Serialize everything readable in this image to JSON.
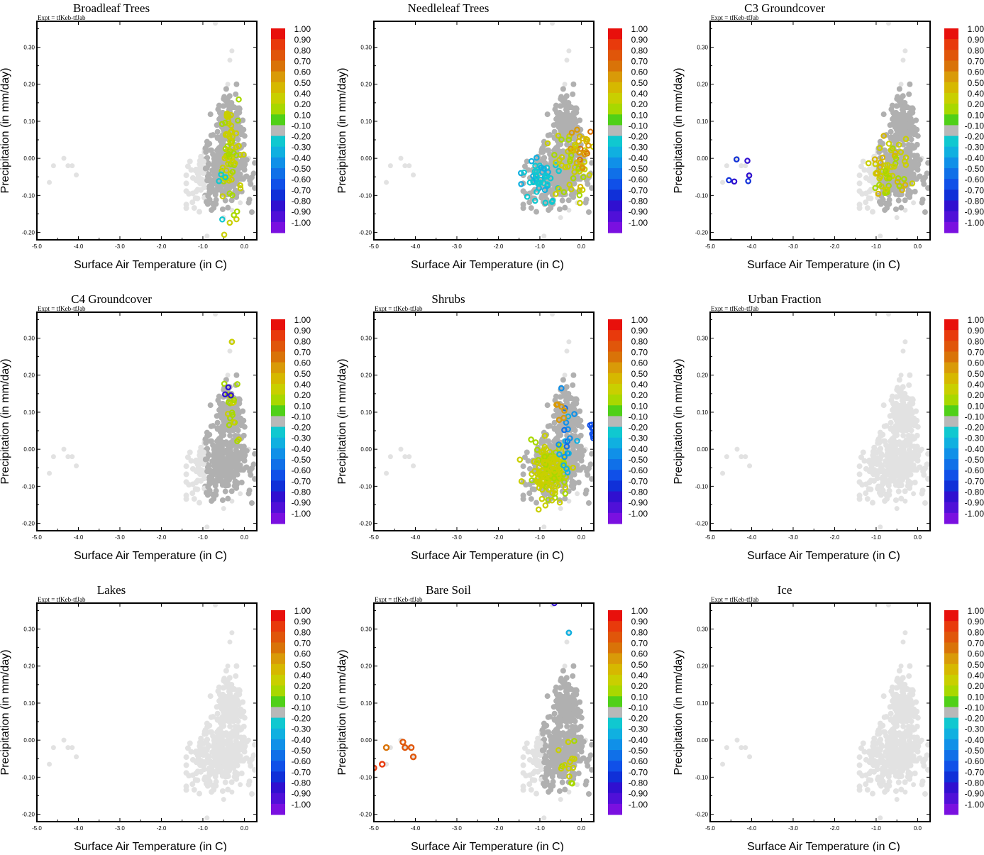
{
  "figure": {
    "panels": [
      {
        "title": "Broadleaf Trees",
        "expt": "Expt = tfKeb-tfJab",
        "xlabel": "Surface Air Temperature (in C)",
        "ylabel": "Precipitation (in mm/day)",
        "mode": "broadleaf"
      },
      {
        "title": "Needleleaf Trees",
        "expt": "",
        "xlabel": "Surface Air Temperature (in C)",
        "ylabel": "Precipitation (in mm/day)",
        "mode": "needleleaf"
      },
      {
        "title": "C3 Groundcover",
        "expt": "Expt = tfKeb-tfJab",
        "xlabel": "Surface Air Temperature (in C)",
        "ylabel": "Precipitation (in mm/day)",
        "mode": "c3"
      },
      {
        "title": "C4 Groundcover",
        "expt": "Expt = tfKeb-tfJab",
        "xlabel": "Surface Air Temperature (in C)",
        "ylabel": "Precipitation (in mm/day)",
        "mode": "c4"
      },
      {
        "title": "Shrubs",
        "expt": "Expt = tfKeb-tfJab",
        "xlabel": "Surface Air Temperature (in C)",
        "ylabel": "Precipitation (in mm/day)",
        "mode": "shrubs"
      },
      {
        "title": "Urban Fraction",
        "expt": "Expt = tfKeb-tfJab",
        "xlabel": "Surface Air Temperature (in C)",
        "ylabel": "Precipitation (in mm/day)",
        "mode": "none"
      },
      {
        "title": "Lakes",
        "expt": "Expt = tfKeb-tfJab",
        "xlabel": "Surface Air Temperature (in C)",
        "ylabel": "Precipitation (in mm/day)",
        "mode": "none"
      },
      {
        "title": "Bare Soil",
        "expt": "Expt = tfKeb-tfJab",
        "xlabel": "Surface Air Temperature (in C)",
        "ylabel": "Precipitation (in mm/day)",
        "mode": "bare"
      },
      {
        "title": "Ice",
        "expt": "Expt = tfKeb-tfJab",
        "xlabel": "Surface Air Temperature (in C)",
        "ylabel": "Precipitation (in mm/day)",
        "mode": "none"
      }
    ],
    "colorbar": {
      "labels": [
        "1.00",
        "0.90",
        "0.80",
        "0.70",
        "0.60",
        "0.50",
        "0.40",
        "0.20",
        "0.10",
        "-0.10",
        "-0.20",
        "-0.30",
        "-0.40",
        "-0.50",
        "-0.60",
        "-0.70",
        "-0.80",
        "-0.90",
        "-1.00"
      ],
      "colors": [
        "#e8100c",
        "#e83a0c",
        "#e0560a",
        "#d97308",
        "#d99a08",
        "#d6b800",
        "#c9cf00",
        "#a8d800",
        "#50d018",
        "#b8b8b8",
        "#10c8d0",
        "#10b0e0",
        "#1090e8",
        "#1070e8",
        "#1050e8",
        "#1030d8",
        "#3010d0",
        "#5010d8",
        "#7a10e0"
      ]
    },
    "palette": {
      "light_gray": "#e2e2e2",
      "dark_gray": "#b0b0b0"
    }
  },
  "chart_data": {
    "type": "scatter",
    "xlim": [
      -5.0,
      0.3
    ],
    "ylim": [
      -0.22,
      0.37
    ],
    "xticks": [
      "-5.0",
      "-4.0",
      "-3.0",
      "-2.0",
      "-1.0",
      "0.0"
    ],
    "yticks": [
      "-0.20",
      "-0.10",
      "0.00",
      "0.10",
      "0.20",
      "0.30"
    ],
    "xtick_values": [
      -5,
      -4,
      -3,
      -2,
      -1,
      0
    ],
    "ytick_values": [
      -0.2,
      -0.1,
      0,
      0.1,
      0.2,
      0.3
    ],
    "cold_outliers": [
      [
        -4.7,
        -0.065
      ],
      [
        -4.6,
        -0.02
      ],
      [
        -4.35,
        0.0
      ],
      [
        -4.25,
        -0.02
      ],
      [
        -4.15,
        -0.02
      ],
      [
        -4.05,
        -0.045
      ]
    ],
    "sparse_points": [
      [
        -0.7,
        0.365
      ],
      [
        -0.3,
        0.29
      ],
      [
        -0.35,
        0.265
      ],
      [
        -0.4,
        0.2
      ],
      [
        -0.9,
        -0.21
      ],
      [
        -0.5,
        -0.16
      ],
      [
        -0.1,
        -0.12
      ],
      [
        0.1,
        0.0
      ],
      [
        -0.3,
        -0.14
      ]
    ],
    "color_scale": [
      -1.0,
      1.0
    ]
  }
}
